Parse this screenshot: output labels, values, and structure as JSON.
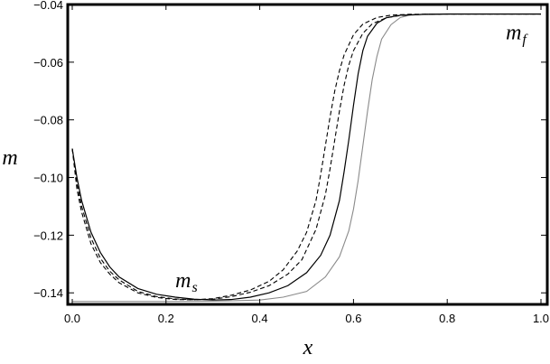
{
  "chart_data": {
    "type": "line",
    "title": "",
    "xlabel": "x",
    "ylabel": "m",
    "xlim": [
      0.0,
      1.0
    ],
    "ylim": [
      -0.144,
      -0.04
    ],
    "xticks": [
      {
        "value": 0.0,
        "label": "0.0"
      },
      {
        "value": 0.2,
        "label": "0.2"
      },
      {
        "value": 0.4,
        "label": "0.4"
      },
      {
        "value": 0.6,
        "label": "0.6"
      },
      {
        "value": 0.8,
        "label": "0.8"
      },
      {
        "value": 1.0,
        "label": "1.0"
      }
    ],
    "yticks": [
      {
        "value": -0.04,
        "label": "−0.04"
      },
      {
        "value": -0.06,
        "label": "−0.06"
      },
      {
        "value": -0.08,
        "label": "−0.08"
      },
      {
        "value": -0.1,
        "label": "−0.10"
      },
      {
        "value": -0.12,
        "label": "−0.12"
      },
      {
        "value": -0.14,
        "label": "−0.14"
      }
    ],
    "grid": false,
    "series": [
      {
        "style": "solid-gray",
        "color": "#8a8a8a",
        "x": [
          0.0,
          0.1,
          0.2,
          0.3,
          0.4,
          0.45,
          0.5,
          0.54,
          0.57,
          0.59,
          0.6,
          0.61,
          0.62,
          0.63,
          0.64,
          0.65,
          0.66,
          0.68,
          0.7,
          0.72,
          0.75,
          0.8,
          0.9,
          1.0
        ],
        "y": [
          -0.143,
          -0.143,
          -0.143,
          -0.1429,
          -0.1425,
          -0.1415,
          -0.1395,
          -0.1345,
          -0.1275,
          -0.1185,
          -0.111,
          -0.101,
          -0.089,
          -0.077,
          -0.066,
          -0.058,
          -0.052,
          -0.047,
          -0.0445,
          -0.0437,
          -0.0434,
          -0.0433,
          -0.0433,
          -0.0433
        ]
      },
      {
        "style": "solid-black",
        "color": "#000000",
        "x": [
          0.0,
          0.01,
          0.02,
          0.04,
          0.06,
          0.08,
          0.1,
          0.14,
          0.18,
          0.22,
          0.26,
          0.3,
          0.34,
          0.38,
          0.42,
          0.46,
          0.5,
          0.53,
          0.55,
          0.57,
          0.58,
          0.59,
          0.6,
          0.61,
          0.62,
          0.63,
          0.65,
          0.67,
          0.7,
          0.75,
          0.8,
          0.9,
          1.0
        ],
        "y": [
          -0.09,
          -0.1,
          -0.108,
          -0.119,
          -0.126,
          -0.131,
          -0.1345,
          -0.1385,
          -0.1405,
          -0.1415,
          -0.1422,
          -0.1425,
          -0.1423,
          -0.1415,
          -0.14,
          -0.1375,
          -0.133,
          -0.127,
          -0.12,
          -0.108,
          -0.098,
          -0.087,
          -0.075,
          -0.064,
          -0.056,
          -0.051,
          -0.0465,
          -0.0446,
          -0.0437,
          -0.0434,
          -0.0433,
          -0.0433,
          -0.0433
        ]
      },
      {
        "style": "dashed-1",
        "color": "#000000",
        "x": [
          0.0,
          0.01,
          0.02,
          0.04,
          0.06,
          0.08,
          0.1,
          0.14,
          0.18,
          0.22,
          0.26,
          0.3,
          0.34,
          0.38,
          0.42,
          0.46,
          0.49,
          0.52,
          0.54,
          0.55,
          0.56,
          0.57,
          0.58,
          0.59,
          0.6,
          0.62,
          0.64,
          0.67,
          0.7,
          0.75,
          0.8,
          0.9,
          1.0
        ],
        "y": [
          -0.09,
          -0.102,
          -0.11,
          -0.121,
          -0.128,
          -0.1325,
          -0.1355,
          -0.1395,
          -0.1413,
          -0.1421,
          -0.1424,
          -0.1422,
          -0.1413,
          -0.1398,
          -0.1375,
          -0.1335,
          -0.1285,
          -0.118,
          -0.106,
          -0.097,
          -0.087,
          -0.077,
          -0.068,
          -0.061,
          -0.056,
          -0.05,
          -0.0467,
          -0.0446,
          -0.0438,
          -0.0434,
          -0.0433,
          -0.0433,
          -0.0433
        ]
      },
      {
        "style": "dashed-2",
        "color": "#000000",
        "x": [
          0.0,
          0.01,
          0.02,
          0.04,
          0.06,
          0.08,
          0.1,
          0.14,
          0.18,
          0.22,
          0.26,
          0.3,
          0.34,
          0.38,
          0.42,
          0.45,
          0.48,
          0.5,
          0.52,
          0.53,
          0.54,
          0.55,
          0.56,
          0.57,
          0.58,
          0.6,
          0.62,
          0.65,
          0.68,
          0.72,
          0.8,
          0.9,
          1.0
        ],
        "y": [
          -0.09,
          -0.104,
          -0.112,
          -0.123,
          -0.1295,
          -0.1335,
          -0.1365,
          -0.14,
          -0.1416,
          -0.1423,
          -0.1424,
          -0.142,
          -0.1408,
          -0.139,
          -0.136,
          -0.132,
          -0.1255,
          -0.119,
          -0.108,
          -0.099,
          -0.089,
          -0.079,
          -0.07,
          -0.063,
          -0.0575,
          -0.0505,
          -0.0468,
          -0.0445,
          -0.0437,
          -0.0434,
          -0.0433,
          -0.0433,
          -0.0433
        ]
      }
    ],
    "annotations": [
      {
        "base": "m",
        "sub": "s",
        "x": 0.22,
        "y": -0.138
      },
      {
        "base": "m",
        "sub": "f",
        "x": 0.925,
        "y": -0.052
      }
    ]
  }
}
